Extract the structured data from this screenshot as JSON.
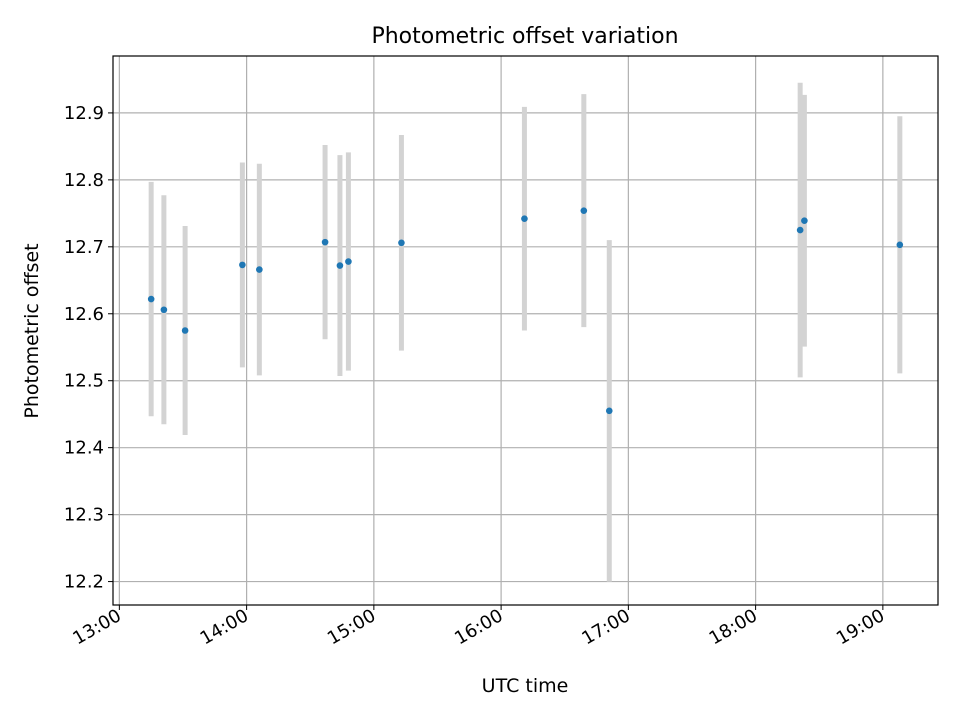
{
  "chart_data": {
    "type": "scatter",
    "title": "Photometric offset variation",
    "xlabel": "UTC time",
    "ylabel": "Photometric offset",
    "x_ticks": [
      "13:00",
      "14:00",
      "15:00",
      "16:00",
      "17:00",
      "18:00",
      "19:00"
    ],
    "y_ticks": [
      "12.2",
      "12.3",
      "12.4",
      "12.5",
      "12.6",
      "12.7",
      "12.8",
      "12.9"
    ],
    "xlim": [
      "12:57",
      "19:26"
    ],
    "ylim": [
      12.165,
      12.985
    ],
    "grid": true,
    "legend": "none",
    "marker_color": "#1f77b4",
    "errorbar_color": "#d3d3d3",
    "points": [
      {
        "x": "13:15",
        "y": 12.622,
        "err": 0.175
      },
      {
        "x": "13:21",
        "y": 12.606,
        "err": 0.171
      },
      {
        "x": "13:31",
        "y": 12.575,
        "err": 0.156
      },
      {
        "x": "13:58",
        "y": 12.673,
        "err": 0.153
      },
      {
        "x": "14:06",
        "y": 12.666,
        "err": 0.158
      },
      {
        "x": "14:37",
        "y": 12.707,
        "err": 0.145
      },
      {
        "x": "14:44",
        "y": 12.672,
        "err": 0.165
      },
      {
        "x": "14:48",
        "y": 12.678,
        "err": 0.163
      },
      {
        "x": "15:13",
        "y": 12.706,
        "err": 0.161
      },
      {
        "x": "16:11",
        "y": 12.742,
        "err": 0.167
      },
      {
        "x": "16:39",
        "y": 12.754,
        "err": 0.174
      },
      {
        "x": "16:51",
        "y": 12.455,
        "err": 0.255
      },
      {
        "x": "18:21",
        "y": 12.725,
        "err": 0.22
      },
      {
        "x": "18:23",
        "y": 12.739,
        "err": 0.188
      },
      {
        "x": "19:08",
        "y": 12.703,
        "err": 0.192
      }
    ]
  }
}
